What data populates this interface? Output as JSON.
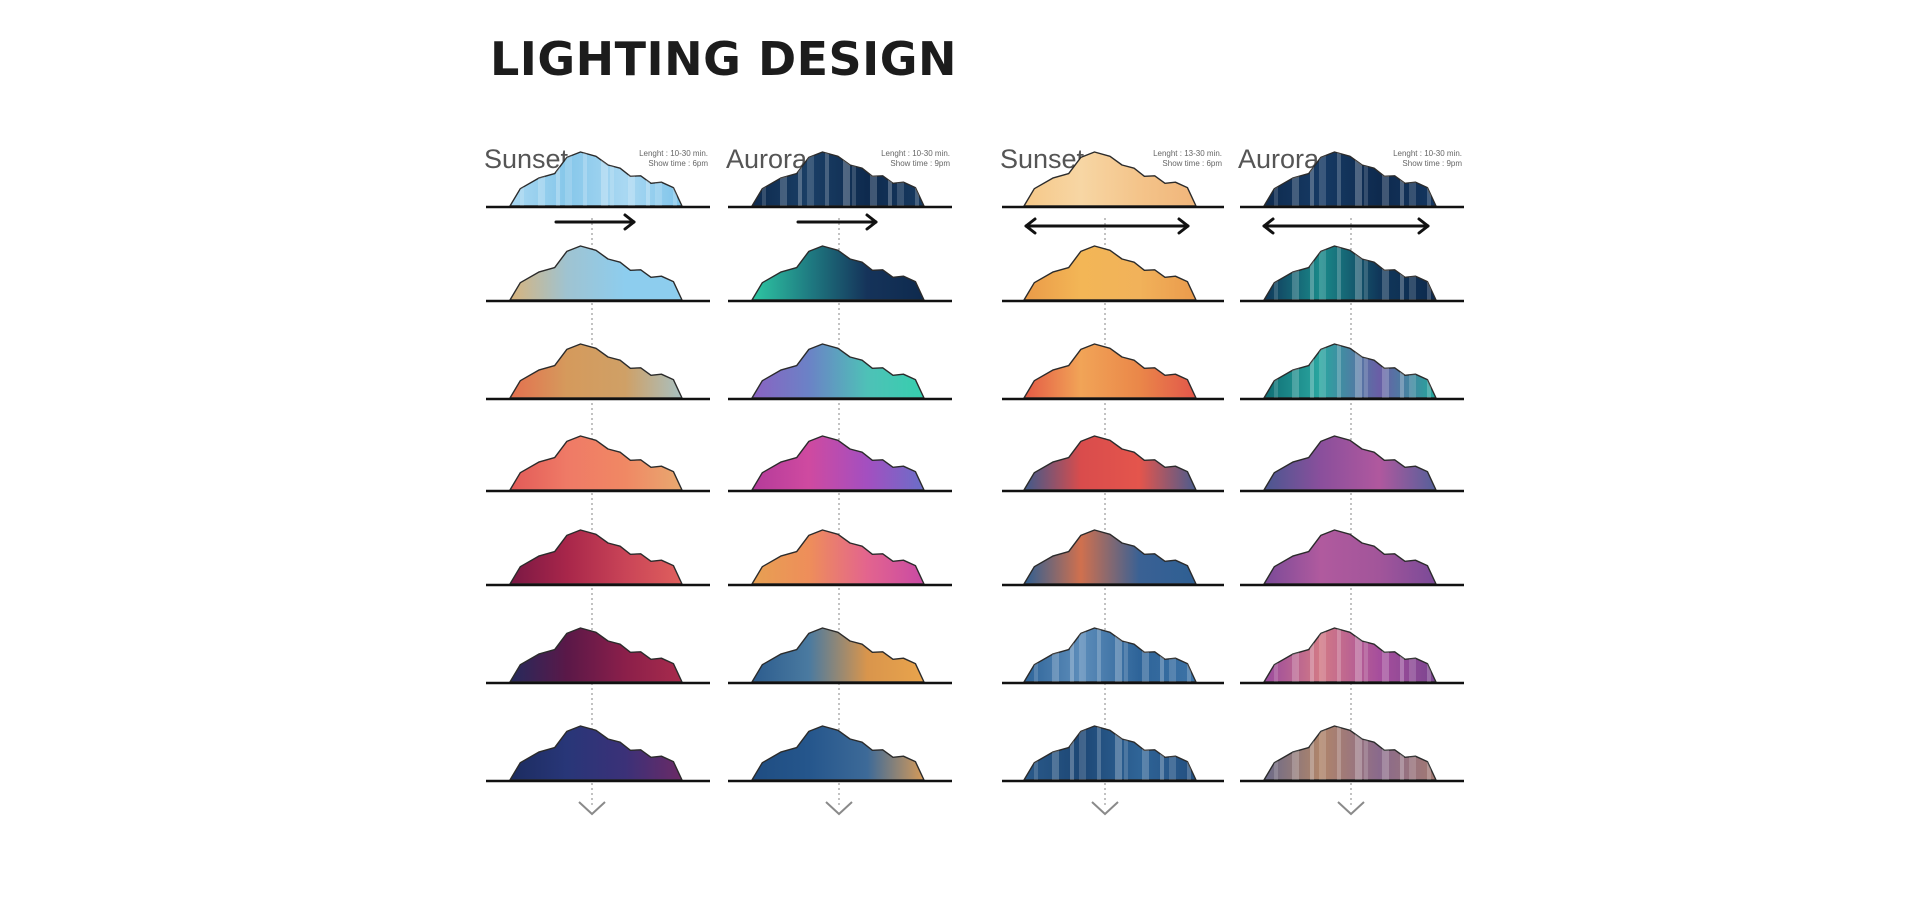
{
  "page": {
    "title": "LIGHTING DESIGN"
  },
  "shape": {
    "name": "mountain-silhouette",
    "outline_color": "#2b2b2b"
  },
  "columns": [
    {
      "name": "Sunset",
      "info": [
        "Lenght : 10-30 min.",
        "Show time : 6pm"
      ],
      "direction": "one-way",
      "frames": [
        {
          "stops": [
            "#a9d8f2",
            "#86c7ea",
            "#a9d8f2",
            "#7fc4ea"
          ],
          "streaks": true
        },
        {
          "stops": [
            "#d8b37c",
            "#9fc3d1",
            "#8dcdee",
            "#8dcdee"
          ]
        },
        {
          "stops": [
            "#e4704f",
            "#d59a5c",
            "#cfa066",
            "#a8c1c2"
          ]
        },
        {
          "stops": [
            "#e25a58",
            "#ef7a66",
            "#f08864",
            "#e8a970"
          ]
        },
        {
          "stops": [
            "#7a1844",
            "#a8264a",
            "#c94457",
            "#e0605d"
          ]
        },
        {
          "stops": [
            "#252a5c",
            "#5a1848",
            "#8b1f4a",
            "#a82b4c"
          ]
        },
        {
          "stops": [
            "#1c2c60",
            "#283678",
            "#3b3178",
            "#6b2a66"
          ]
        }
      ]
    },
    {
      "name": "Aurora",
      "info": [
        "Lenght : 10-30 min.",
        "Show time : 9pm"
      ],
      "direction": "one-way",
      "frames": [
        {
          "stops": [
            "#0e2a4e",
            "#1a3f66",
            "#0e2a4e",
            "#173a60"
          ],
          "streaks": true
        },
        {
          "stops": [
            "#2ec7a3",
            "#1f7c82",
            "#15335a",
            "#0e2a4e"
          ]
        },
        {
          "stops": [
            "#8a62c2",
            "#6b82c6",
            "#4ec1b7",
            "#36cfae"
          ]
        },
        {
          "stops": [
            "#b43b9a",
            "#cf4aa0",
            "#a34fc0",
            "#6a6ec8"
          ]
        },
        {
          "stops": [
            "#e7a052",
            "#ee8e5a",
            "#e3648e",
            "#c94aa4"
          ]
        },
        {
          "stops": [
            "#2c5c8e",
            "#4a7aa0",
            "#d9954c",
            "#e9a44c"
          ]
        },
        {
          "stops": [
            "#1f4d82",
            "#25568c",
            "#3d6a98",
            "#d69a58"
          ]
        }
      ]
    },
    {
      "name": "Sunset",
      "info": [
        "Lenght : 13-30 min.",
        "Show time : 6pm"
      ],
      "direction": "two-way",
      "frames": [
        {
          "stops": [
            "#f6c888",
            "#f7d6a4",
            "#f4c48a",
            "#f0b57a"
          ]
        },
        {
          "stops": [
            "#ea9a48",
            "#f3b656",
            "#f1b25a",
            "#ea9a4c"
          ]
        },
        {
          "stops": [
            "#e45a45",
            "#f1a457",
            "#ea8749",
            "#e2564a"
          ]
        },
        {
          "stops": [
            "#3e5a8c",
            "#d94c4c",
            "#e4554c",
            "#4a5c8e"
          ]
        },
        {
          "stops": [
            "#2e5f93",
            "#d0704e",
            "#3a6194",
            "#2e5f93"
          ]
        },
        {
          "stops": [
            "#2e6499",
            "#5d8dba",
            "#2e6499",
            "#3d73a6"
          ],
          "streaks": true
        },
        {
          "stops": [
            "#2a5a8a",
            "#1d4775",
            "#2f6497",
            "#234f80"
          ],
          "streaks": true
        }
      ]
    },
    {
      "name": "Aurora",
      "info": [
        "Lenght : 10-30 min.",
        "Show time : 9pm"
      ],
      "direction": "two-way",
      "frames": [
        {
          "stops": [
            "#0e2a4e",
            "#163a64",
            "#0e2a4e",
            "#143660"
          ],
          "streaks": true
        },
        {
          "stops": [
            "#10375a",
            "#1a8a8a",
            "#10375a",
            "#0e2a4e"
          ],
          "streaks": true
        },
        {
          "stops": [
            "#0f6e74",
            "#2aa6a0",
            "#6a5ea6",
            "#23a89c"
          ],
          "streaks": true
        },
        {
          "stops": [
            "#4a5790",
            "#8a4f9c",
            "#b0589e",
            "#54609a"
          ]
        },
        {
          "stops": [
            "#7a4a98",
            "#b05a9e",
            "#a2559a",
            "#7a4a98"
          ]
        },
        {
          "stops": [
            "#9a4a9e",
            "#d27a86",
            "#a64e9c",
            "#7a4590"
          ],
          "streaks": true
        },
        {
          "stops": [
            "#6b6a8a",
            "#b0856a",
            "#8a6a8c",
            "#a37a72"
          ],
          "streaks": true
        }
      ]
    }
  ]
}
